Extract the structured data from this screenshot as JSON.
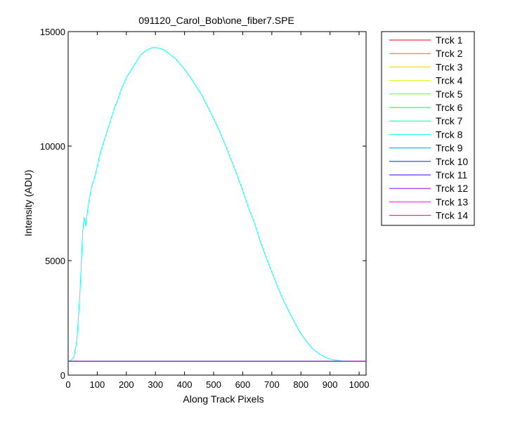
{
  "chart_data": {
    "type": "line",
    "title": "091120_Carol_Bob\\one_fiber7.SPE",
    "xlabel": "Along Track Pixels",
    "ylabel": "Intensity (ADU)",
    "xlim": [
      0,
      1024
    ],
    "ylim": [
      0,
      15000
    ],
    "xticks": [
      0,
      100,
      200,
      300,
      400,
      500,
      600,
      700,
      800,
      900,
      1000
    ],
    "yticks": [
      0,
      5000,
      10000,
      15000
    ],
    "grid": false,
    "legend_position": "outside-right",
    "series": [
      {
        "name": "Trck 1",
        "color": "#ff0000",
        "x": [
          0,
          1024
        ],
        "y": [
          600,
          600
        ]
      },
      {
        "name": "Trck 2",
        "color": "#ff6600",
        "x": [
          0,
          1024
        ],
        "y": [
          600,
          600
        ]
      },
      {
        "name": "Trck 3",
        "color": "#ffcc00",
        "x": [
          0,
          1024
        ],
        "y": [
          600,
          600
        ]
      },
      {
        "name": "Trck 4",
        "color": "#ccff00",
        "x": [
          0,
          1024
        ],
        "y": [
          600,
          600
        ]
      },
      {
        "name": "Trck 5",
        "color": "#66ff00",
        "x": [
          0,
          1024
        ],
        "y": [
          600,
          600
        ]
      },
      {
        "name": "Trck 6",
        "color": "#00ff33",
        "x": [
          0,
          1024
        ],
        "y": [
          600,
          600
        ]
      },
      {
        "name": "Trck 7",
        "color": "#00ff99",
        "x": [
          0,
          1024
        ],
        "y": [
          600,
          600
        ]
      },
      {
        "name": "Trck 8",
        "color": "#00ffff",
        "x": [
          0,
          10,
          20,
          30,
          40,
          50,
          55,
          60,
          65,
          70,
          80,
          90,
          100,
          110,
          120,
          130,
          140,
          150,
          160,
          170,
          180,
          190,
          200,
          210,
          220,
          230,
          240,
          250,
          260,
          270,
          280,
          290,
          300,
          310,
          320,
          330,
          340,
          350,
          360,
          370,
          380,
          390,
          400,
          420,
          440,
          460,
          480,
          500,
          520,
          540,
          560,
          580,
          600,
          620,
          640,
          660,
          680,
          700,
          720,
          740,
          760,
          780,
          800,
          820,
          840,
          860,
          880,
          900,
          920,
          940,
          960,
          980,
          1000,
          1024
        ],
        "y": [
          600,
          650,
          800,
          1500,
          3500,
          6300,
          6900,
          6500,
          7000,
          7500,
          8200,
          8600,
          9100,
          9700,
          10100,
          10500,
          10900,
          11300,
          11700,
          12000,
          12400,
          12700,
          13000,
          13200,
          13400,
          13600,
          13800,
          14000,
          14100,
          14200,
          14250,
          14300,
          14300,
          14280,
          14250,
          14200,
          14100,
          14000,
          13900,
          13800,
          13650,
          13500,
          13350,
          13000,
          12600,
          12200,
          11700,
          11200,
          10650,
          10050,
          9400,
          8750,
          8050,
          7300,
          6650,
          5850,
          5150,
          4500,
          3850,
          3250,
          2750,
          2250,
          1800,
          1450,
          1150,
          950,
          800,
          700,
          650,
          620,
          610,
          600,
          600,
          600
        ]
      },
      {
        "name": "Trck 9",
        "color": "#0099ff",
        "x": [
          0,
          1024
        ],
        "y": [
          600,
          600
        ]
      },
      {
        "name": "Trck 10",
        "color": "#0033cc",
        "x": [
          0,
          1024
        ],
        "y": [
          600,
          600
        ]
      },
      {
        "name": "Trck 11",
        "color": "#3300ff",
        "x": [
          0,
          1024
        ],
        "y": [
          600,
          600
        ]
      },
      {
        "name": "Trck 12",
        "color": "#9900ff",
        "x": [
          0,
          1024
        ],
        "y": [
          600,
          600
        ]
      },
      {
        "name": "Trck 13",
        "color": "#ff00ff",
        "x": [
          0,
          1024
        ],
        "y": [
          600,
          600
        ]
      },
      {
        "name": "Trck 14",
        "color": "#ff0066",
        "x": [
          0,
          1024
        ],
        "y": [
          600,
          600
        ]
      }
    ]
  }
}
